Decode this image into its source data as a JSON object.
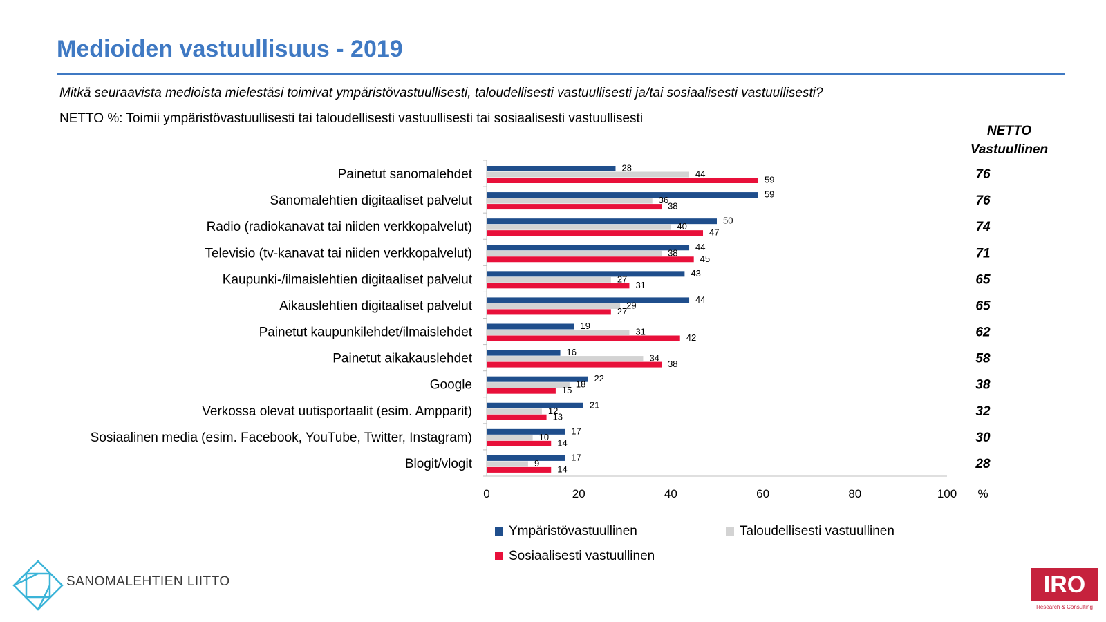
{
  "header": {
    "title": "Medioiden vastuullisuus - 2019",
    "question": "Mitkä seuraavista medioista mielestäsi toimivat ympäristövastuullisesti, taloudellisesti vastuullisesti ja/tai sosiaalisesti vastuullisesti?",
    "subtitle": "NETTO %: Toimii ympäristövastuullisesti tai taloudellisesti vastuullisesti tai sosiaalisesti vastuullisesti",
    "netto_header_line1": "NETTO",
    "netto_header_line2": "Vastuullinen"
  },
  "chart_data": {
    "type": "bar",
    "orientation": "horizontal",
    "categories": [
      "Painetut sanomalehdet",
      "Sanomalehtien digitaaliset palvelut",
      "Radio (radiokanavat tai niiden verkkopalvelut)",
      "Televisio (tv-kanavat tai niiden verkkopalvelut)",
      "Kaupunki-/ilmaislehtien digitaaliset palvelut",
      "Aikauslehtien digitaaliset palvelut",
      "Painetut kaupunkilehdet/ilmaislehdet",
      "Painetut aikakauslehdet",
      "Google",
      "Verkossa olevat uutisportaalit (esim. Ampparit)",
      "Sosiaalinen media (esim. Facebook, YouTube, Twitter, Instagram)",
      "Blogit/vlogit"
    ],
    "series": [
      {
        "name": "Ympäristövastuullinen",
        "color": "#1f4e8c",
        "values": [
          28,
          59,
          50,
          44,
          43,
          44,
          19,
          16,
          22,
          21,
          17,
          17
        ]
      },
      {
        "name": "Taloudellisesti vastuullinen",
        "color": "#d3d3d3",
        "values": [
          44,
          36,
          40,
          38,
          27,
          29,
          31,
          34,
          18,
          12,
          10,
          9
        ]
      },
      {
        "name": "Sosiaalisesti vastuullinen",
        "color": "#e8103a",
        "values": [
          59,
          38,
          47,
          45,
          31,
          27,
          42,
          38,
          15,
          13,
          14,
          14
        ]
      }
    ],
    "netto": [
      76,
      76,
      74,
      71,
      65,
      65,
      62,
      58,
      38,
      32,
      30,
      28
    ],
    "xlim": [
      0,
      100
    ],
    "xticks": [
      "0",
      "20",
      "40",
      "60",
      "80",
      "100"
    ],
    "x_unit": "%",
    "grid": false,
    "legend_position": "bottom"
  },
  "branding": {
    "left_logo_text": "SANOMALEHTIEN LIITTO",
    "right_logo_text": "IRO",
    "right_logo_sub": "Research & Consulting"
  }
}
